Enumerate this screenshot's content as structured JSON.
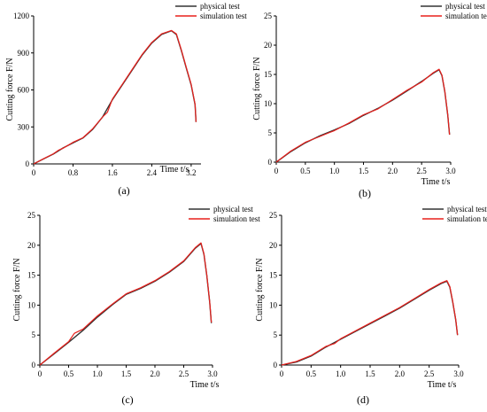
{
  "chart_data": [
    {
      "type": "line",
      "panel_label": "(a)",
      "xlabel": "Time t/s",
      "ylabel": "Cutting force F/N",
      "xlim": [
        0,
        3.4
      ],
      "ylim": [
        0,
        1200
      ],
      "xticks": [
        0,
        0.8,
        1.6,
        2.4,
        3.2
      ],
      "xtick_labels": [
        "0",
        "0.8",
        "1.6",
        "2.4",
        "3.2"
      ],
      "yticks": [
        0,
        300,
        600,
        900,
        1200
      ],
      "ytick_labels": [
        "0",
        "300",
        "600",
        "900",
        "1200"
      ],
      "legend_position": "top-right",
      "series": [
        {
          "name": "physical test",
          "color": "#333333",
          "x": [
            0,
            0.2,
            0.4,
            0.6,
            0.8,
            1.0,
            1.2,
            1.4,
            1.6,
            1.8,
            2.0,
            2.2,
            2.4,
            2.6,
            2.8,
            2.9,
            3.0,
            3.1,
            3.2,
            3.28,
            3.3
          ],
          "y": [
            0,
            40,
            80,
            130,
            170,
            210,
            280,
            380,
            520,
            640,
            760,
            880,
            980,
            1050,
            1080,
            1050,
            920,
            780,
            640,
            480,
            340
          ]
        },
        {
          "name": "simulation test",
          "color": "#e8201c",
          "x": [
            0,
            0.2,
            0.4,
            0.5,
            0.6,
            0.8,
            1.0,
            1.2,
            1.4,
            1.5,
            1.6,
            1.8,
            2.0,
            2.2,
            2.4,
            2.6,
            2.8,
            2.9,
            3.0,
            3.1,
            3.2,
            3.28,
            3.3
          ],
          "y": [
            0,
            42,
            82,
            110,
            128,
            175,
            212,
            285,
            380,
            420,
            525,
            645,
            765,
            885,
            985,
            1055,
            1082,
            1055,
            925,
            785,
            645,
            485,
            340
          ]
        }
      ]
    },
    {
      "type": "line",
      "panel_label": "(b)",
      "xlabel": "Time t/s",
      "ylabel": "Cutting force F/N",
      "xlim": [
        0,
        3.0
      ],
      "ylim": [
        0,
        25
      ],
      "xticks": [
        0,
        0.5,
        1.0,
        1.5,
        2.0,
        2.5,
        3.0
      ],
      "xtick_labels": [
        "0",
        "0.5",
        "1.0",
        "1.5",
        "2.0",
        "2.5",
        "3.0"
      ],
      "yticks": [
        0,
        5,
        10,
        15,
        20,
        25
      ],
      "ytick_labels": [
        "0",
        "5",
        "10",
        "15",
        "20",
        "25"
      ],
      "legend_position": "top-right",
      "series": [
        {
          "name": "physical test",
          "color": "#333333",
          "x": [
            0,
            0.25,
            0.5,
            0.75,
            1.0,
            1.25,
            1.5,
            1.75,
            2.0,
            2.25,
            2.5,
            2.7,
            2.8,
            2.85,
            2.9,
            2.95,
            2.98
          ],
          "y": [
            0,
            1.8,
            3.3,
            4.5,
            5.5,
            6.6,
            8.0,
            9.2,
            10.6,
            12.2,
            13.8,
            15.2,
            15.8,
            14.8,
            12.0,
            8.0,
            4.7
          ]
        },
        {
          "name": "simulation test",
          "color": "#e8201c",
          "x": [
            0,
            0.25,
            0.5,
            0.75,
            0.9,
            1.0,
            1.25,
            1.5,
            1.75,
            2.0,
            2.25,
            2.5,
            2.7,
            2.8,
            2.85,
            2.9,
            2.95,
            2.98
          ],
          "y": [
            0,
            1.9,
            3.4,
            4.4,
            5.0,
            5.4,
            6.7,
            8.1,
            9.1,
            10.7,
            12.3,
            13.7,
            15.3,
            15.9,
            14.9,
            12.1,
            8.1,
            4.7
          ]
        }
      ]
    },
    {
      "type": "line",
      "panel_label": "(c)",
      "xlabel": "Time t/s",
      "ylabel": "Cutting force F/N",
      "xlim": [
        0,
        3.0
      ],
      "ylim": [
        0,
        25
      ],
      "xticks": [
        0,
        0.5,
        1.0,
        1.5,
        2.0,
        2.5,
        3.0
      ],
      "xtick_labels": [
        "0",
        "0.5",
        "1.0",
        "1.5",
        "2.0",
        "2.5",
        "3.0"
      ],
      "yticks": [
        0,
        5,
        10,
        15,
        20,
        25
      ],
      "ytick_labels": [
        "0",
        "5",
        "10",
        "15",
        "20",
        "25"
      ],
      "legend_position": "top-right",
      "series": [
        {
          "name": "physical test",
          "color": "#333333",
          "x": [
            0,
            0.25,
            0.5,
            0.75,
            1.0,
            1.25,
            1.5,
            1.75,
            2.0,
            2.25,
            2.5,
            2.7,
            2.8,
            2.85,
            2.9,
            2.95,
            2.98
          ],
          "y": [
            0,
            1.9,
            3.8,
            5.8,
            8.0,
            10.0,
            11.8,
            12.8,
            14.0,
            15.5,
            17.3,
            19.5,
            20.3,
            18.5,
            15.0,
            10.5,
            7.0
          ]
        },
        {
          "name": "simulation test",
          "color": "#e8201c",
          "x": [
            0,
            0.25,
            0.5,
            0.6,
            0.75,
            1.0,
            1.25,
            1.5,
            1.75,
            2.0,
            2.25,
            2.5,
            2.7,
            2.8,
            2.85,
            2.9,
            2.95,
            2.98
          ],
          "y": [
            0,
            2.0,
            3.9,
            5.3,
            6.0,
            8.2,
            10.1,
            11.9,
            12.9,
            14.1,
            15.6,
            17.4,
            19.6,
            20.4,
            18.6,
            15.1,
            10.6,
            7.1
          ]
        }
      ]
    },
    {
      "type": "line",
      "panel_label": "(d)",
      "xlabel": "Time t/s",
      "ylabel": "Cutting force F/N",
      "xlim": [
        0,
        3.0
      ],
      "ylim": [
        0,
        25
      ],
      "xticks": [
        0,
        0.5,
        1.0,
        1.5,
        2.0,
        2.5,
        3.0
      ],
      "xtick_labels": [
        "0",
        "0.5",
        "1.0",
        "1.5",
        "2.0",
        "2.5",
        "3.0"
      ],
      "yticks": [
        0,
        5,
        10,
        15,
        20,
        25
      ],
      "ytick_labels": [
        "0",
        "5",
        "10",
        "15",
        "20",
        "25"
      ],
      "legend_position": "top-right",
      "series": [
        {
          "name": "physical test",
          "color": "#333333",
          "x": [
            0,
            0.25,
            0.5,
            0.75,
            1.0,
            1.25,
            1.5,
            1.75,
            2.0,
            2.25,
            2.5,
            2.7,
            2.8,
            2.85,
            2.9,
            2.95,
            2.98
          ],
          "y": [
            0,
            0.5,
            1.5,
            3.0,
            4.3,
            5.6,
            6.9,
            8.2,
            9.5,
            11.0,
            12.5,
            13.6,
            14.0,
            13.0,
            10.5,
            7.5,
            5.0
          ]
        },
        {
          "name": "simulation test",
          "color": "#e8201c",
          "x": [
            0,
            0.25,
            0.5,
            0.75,
            0.9,
            1.0,
            1.25,
            1.5,
            1.75,
            2.0,
            2.25,
            2.5,
            2.7,
            2.8,
            2.85,
            2.9,
            2.95,
            2.98
          ],
          "y": [
            0,
            0.6,
            1.6,
            3.1,
            3.6,
            4.4,
            5.7,
            7.0,
            8.3,
            9.6,
            11.1,
            12.6,
            13.7,
            14.1,
            13.1,
            10.6,
            7.6,
            5.0
          ]
        }
      ]
    }
  ]
}
